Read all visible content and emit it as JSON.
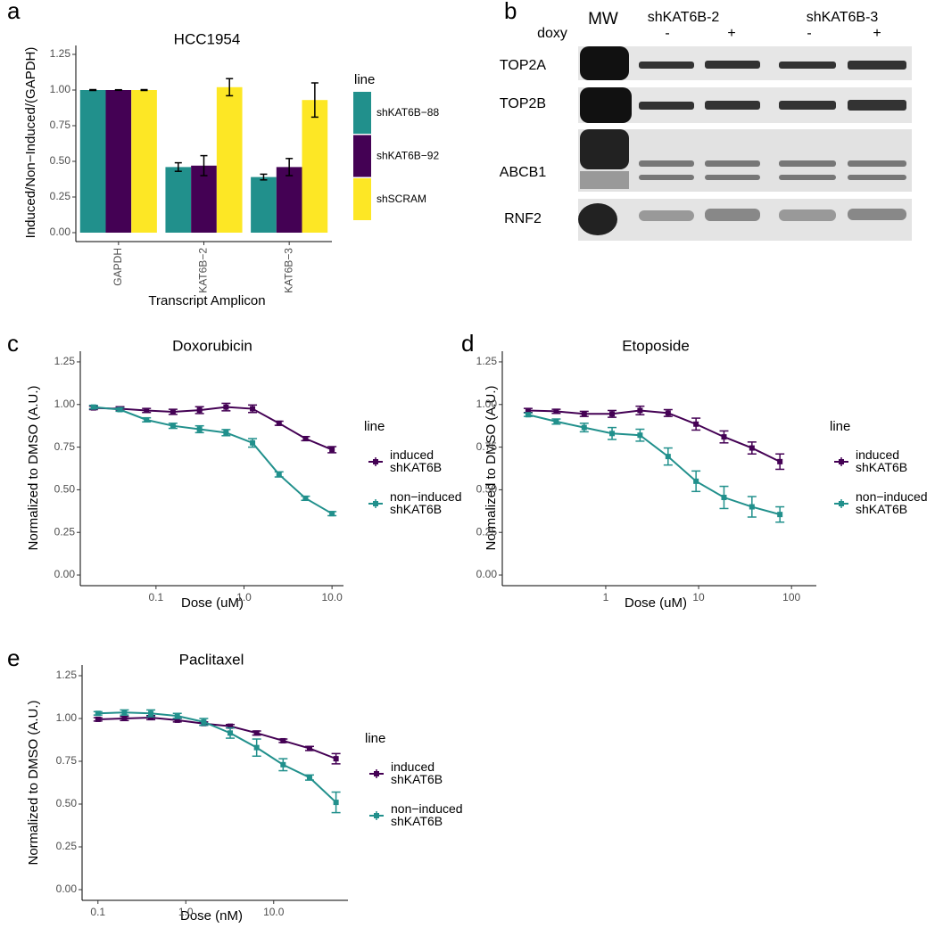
{
  "chart_data": [
    {
      "type": "bar",
      "panel": "a",
      "title": "HCC1954",
      "x_label": "Transcript Amplicon",
      "y_label": "Induced/Non−Induced/(GAPDH)",
      "categories": [
        "GAPDH",
        "KAT6B−2",
        "KAT6B−3"
      ],
      "ylim": [
        -0.0625,
        1.3125
      ],
      "yticks": [
        {
          "value": 0,
          "label": "0.00"
        },
        0.25,
        {
          "value": 0.5,
          "label": "0.50"
        },
        0.75,
        {
          "value": 1,
          "label": "1.00"
        },
        1.25
      ],
      "legend_title": "line",
      "series": [
        {
          "name": "shKAT6B−88",
          "color": "#21908c",
          "values": [
            1.0,
            0.46,
            0.39
          ],
          "errors": [
            0.003,
            0.03,
            0.02
          ]
        },
        {
          "name": "shKAT6B−92",
          "color": "#440154",
          "values": [
            1.0,
            0.47,
            0.46
          ],
          "errors": [
            0.002,
            0.07,
            0.06
          ]
        },
        {
          "name": "shSCRAM",
          "color": "#fde725",
          "values": [
            1.0,
            1.02,
            0.93
          ],
          "errors": [
            0.003,
            0.06,
            0.12
          ]
        }
      ]
    },
    {
      "type": "line",
      "panel": "c",
      "title": "Doxorubicin",
      "x_label": "Dose (uM)",
      "y_label": "Normalized to DMSO (A.U.)",
      "log_x": true,
      "x": [
        0.0195,
        0.039,
        0.078,
        0.156,
        0.3125,
        0.625,
        1.25,
        2.5,
        5,
        10
      ],
      "xlim": [
        0.0138,
        13.5
      ],
      "xticks": [
        0.1,
        {
          "value": 1,
          "label": "1.0"
        },
        {
          "value": 10,
          "label": "10.0"
        }
      ],
      "ylim": [
        -0.0625,
        1.3125
      ],
      "yticks": [
        {
          "value": 0,
          "label": "0.00"
        },
        0.25,
        {
          "value": 0.5,
          "label": "0.50"
        },
        0.75,
        {
          "value": 1,
          "label": "1.00"
        },
        1.25
      ],
      "legend_title": "line",
      "series": [
        {
          "name": "induced shKAT6B",
          "color": "#440154",
          "values": [
            0.98,
            0.975,
            0.965,
            0.957,
            0.967,
            0.985,
            0.975,
            0.89,
            0.8,
            0.735
          ],
          "errors": [
            0.01,
            0.012,
            0.012,
            0.015,
            0.02,
            0.022,
            0.022,
            0.012,
            0.012,
            0.018
          ]
        },
        {
          "name": "non−induced shKAT6B",
          "color": "#21908c",
          "values": [
            0.985,
            0.97,
            0.91,
            0.875,
            0.855,
            0.835,
            0.775,
            0.59,
            0.45,
            0.36
          ],
          "errors": [
            0.01,
            0.01,
            0.012,
            0.015,
            0.02,
            0.018,
            0.025,
            0.015,
            0.012,
            0.012
          ]
        }
      ]
    },
    {
      "type": "line",
      "panel": "d",
      "title": "Etoposide",
      "x_label": "Dose (uM)",
      "y_label": "Normalized to DMSO (A.U.)",
      "log_x": true,
      "x": [
        0.146,
        0.293,
        0.586,
        1.17,
        2.34,
        4.69,
        9.375,
        18.75,
        37.5,
        75
      ],
      "xlim": [
        0.077,
        185
      ],
      "xticks": [
        1,
        10,
        100
      ],
      "ylim": [
        -0.0625,
        1.3125
      ],
      "yticks": [
        {
          "value": 0,
          "label": "0.00"
        },
        0.25,
        {
          "value": 0.5,
          "label": "0.50"
        },
        0.75,
        {
          "value": 1,
          "label": "1.00"
        },
        1.25
      ],
      "legend_title": "line",
      "series": [
        {
          "name": "induced shKAT6B",
          "color": "#440154",
          "values": [
            0.965,
            0.96,
            0.945,
            0.945,
            0.965,
            0.95,
            0.885,
            0.81,
            0.745,
            0.665
          ],
          "errors": [
            0.012,
            0.012,
            0.015,
            0.02,
            0.025,
            0.02,
            0.035,
            0.035,
            0.035,
            0.045
          ]
        },
        {
          "name": "non−induced shKAT6B",
          "color": "#21908c",
          "values": [
            0.94,
            0.9,
            0.865,
            0.83,
            0.82,
            0.695,
            0.55,
            0.455,
            0.4,
            0.355
          ],
          "errors": [
            0.01,
            0.015,
            0.025,
            0.035,
            0.035,
            0.05,
            0.06,
            0.065,
            0.06,
            0.045
          ]
        }
      ]
    },
    {
      "type": "line",
      "panel": "e",
      "title": "Paclitaxel",
      "x_label": "Dose (nM)",
      "y_label": "Normalized to DMSO (A.U.)",
      "log_x": true,
      "x": [
        0.1,
        0.2,
        0.4,
        0.8,
        1.6,
        3.2,
        6.4,
        12.8,
        25.6,
        51.2
      ],
      "xlim": [
        0.066,
        70
      ],
      "xticks": [
        0.1,
        {
          "value": 1,
          "label": "1.0"
        },
        {
          "value": 10,
          "label": "10.0"
        }
      ],
      "ylim": [
        -0.0625,
        1.3125
      ],
      "yticks": [
        {
          "value": 0,
          "label": "0.00"
        },
        0.25,
        {
          "value": 0.5,
          "label": "0.50"
        },
        0.75,
        {
          "value": 1,
          "label": "1.00"
        },
        1.25
      ],
      "legend_title": "line",
      "series": [
        {
          "name": "induced shKAT6B",
          "color": "#440154",
          "values": [
            0.995,
            1.0,
            1.005,
            0.99,
            0.97,
            0.955,
            0.915,
            0.87,
            0.825,
            0.765
          ],
          "errors": [
            0.01,
            0.012,
            0.012,
            0.01,
            0.01,
            0.01,
            0.012,
            0.01,
            0.012,
            0.03
          ]
        },
        {
          "name": "non−induced shKAT6B",
          "color": "#21908c",
          "values": [
            1.03,
            1.035,
            1.03,
            1.015,
            0.98,
            0.915,
            0.83,
            0.73,
            0.655,
            0.51
          ],
          "errors": [
            0.01,
            0.015,
            0.02,
            0.015,
            0.02,
            0.03,
            0.05,
            0.035,
            0.015,
            0.06
          ]
        }
      ]
    }
  ],
  "blot": {
    "panel": "b",
    "mw": "MW",
    "groups": [
      "shKAT6B-2",
      "shKAT6B-3"
    ],
    "treatment": "doxy",
    "treatment_marks": [
      "-",
      "+",
      "-",
      "+"
    ],
    "rows": [
      "TOP2A",
      "TOP2B",
      "ABCB1",
      "RNF2"
    ]
  }
}
